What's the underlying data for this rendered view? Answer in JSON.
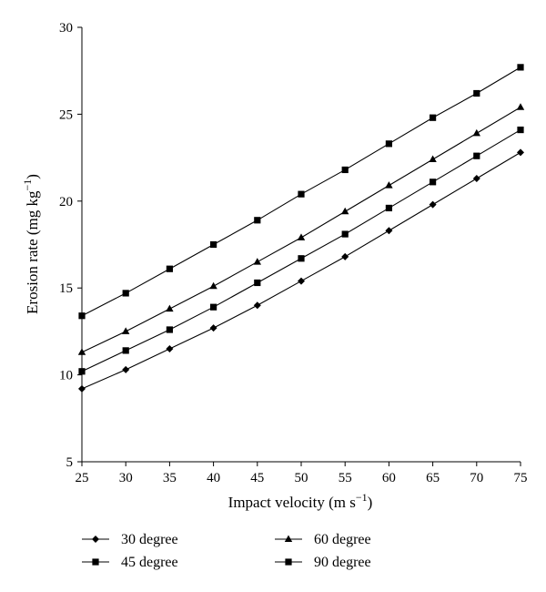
{
  "chart_data": {
    "type": "line",
    "title": "",
    "xlabel": "Impact velocity (m s",
    "xlabel_sup": "−1",
    "xlabel_end": ")",
    "ylabel": "Erosion rate (mg kg",
    "ylabel_sup": "−1",
    "ylabel_end": ")",
    "x": [
      25,
      30,
      35,
      40,
      45,
      50,
      55,
      60,
      65,
      70,
      75
    ],
    "xlim": [
      25,
      75
    ],
    "ylim": [
      5,
      30
    ],
    "xticks": [
      "25",
      "30",
      "35",
      "40",
      "45",
      "50",
      "55",
      "60",
      "65",
      "70",
      "75"
    ],
    "yticks": [
      "5",
      "10",
      "15",
      "20",
      "25",
      "30"
    ],
    "grid": false,
    "legend_position": "bottom",
    "series": [
      {
        "name": "30 degree",
        "marker": "diamond",
        "values": [
          9.2,
          10.3,
          11.5,
          12.7,
          14.0,
          15.4,
          16.8,
          18.3,
          19.8,
          21.3,
          22.8
        ]
      },
      {
        "name": "45 degree",
        "marker": "square",
        "values": [
          10.2,
          11.4,
          12.6,
          13.9,
          15.3,
          16.7,
          18.1,
          19.6,
          21.1,
          22.6,
          24.1
        ]
      },
      {
        "name": "60 degree",
        "marker": "triangle",
        "values": [
          11.3,
          12.5,
          13.8,
          15.1,
          16.5,
          17.9,
          19.4,
          20.9,
          22.4,
          23.9,
          25.4
        ]
      },
      {
        "name": "90 degree",
        "marker": "square",
        "values": [
          13.4,
          14.7,
          16.1,
          17.5,
          18.9,
          20.4,
          21.8,
          23.3,
          24.8,
          26.2,
          27.7
        ]
      }
    ]
  }
}
